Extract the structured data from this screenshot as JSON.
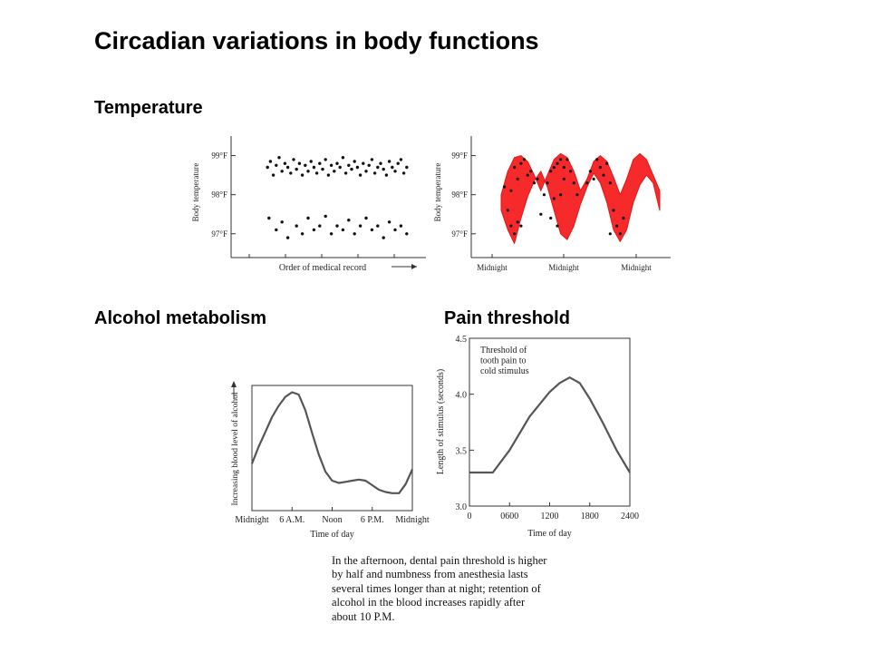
{
  "slide": {
    "title": "Circadian variations in body functions",
    "sections": {
      "temperature": "Temperature",
      "alcohol": "Alcohol metabolism",
      "pain": "Pain threshold"
    },
    "caption": "In the afternoon, dental pain threshold is higher by half and numbness from anesthesia lasts several times longer than at night; retention of alcohol in the blood increases rapidly after about 10 P.M."
  },
  "chart_data": [
    {
      "type": "scatter",
      "id": "temp-unordered",
      "xlabel": "Order of medical record",
      "ylabel": "Body temperature",
      "yticks": [
        "99°F",
        "98°F",
        "97°F"
      ],
      "ytick_values": [
        99,
        98,
        97
      ],
      "ylim": [
        96.6,
        99.5
      ],
      "xlim": [
        0,
        1
      ],
      "points": [
        [
          0.02,
          98.7
        ],
        [
          0.04,
          98.85
        ],
        [
          0.06,
          98.5
        ],
        [
          0.08,
          98.75
        ],
        [
          0.1,
          98.95
        ],
        [
          0.12,
          98.6
        ],
        [
          0.14,
          98.8
        ],
        [
          0.16,
          98.7
        ],
        [
          0.18,
          98.55
        ],
        [
          0.2,
          98.9
        ],
        [
          0.22,
          98.65
        ],
        [
          0.24,
          98.8
        ],
        [
          0.26,
          98.5
        ],
        [
          0.28,
          98.75
        ],
        [
          0.3,
          98.6
        ],
        [
          0.32,
          98.85
        ],
        [
          0.34,
          98.7
        ],
        [
          0.36,
          98.55
        ],
        [
          0.38,
          98.8
        ],
        [
          0.4,
          98.65
        ],
        [
          0.42,
          98.9
        ],
        [
          0.44,
          98.5
        ],
        [
          0.46,
          98.75
        ],
        [
          0.48,
          98.6
        ],
        [
          0.5,
          98.8
        ],
        [
          0.52,
          98.7
        ],
        [
          0.54,
          98.95
        ],
        [
          0.56,
          98.55
        ],
        [
          0.58,
          98.75
        ],
        [
          0.6,
          98.65
        ],
        [
          0.62,
          98.85
        ],
        [
          0.64,
          98.7
        ],
        [
          0.66,
          98.5
        ],
        [
          0.68,
          98.8
        ],
        [
          0.7,
          98.6
        ],
        [
          0.72,
          98.75
        ],
        [
          0.74,
          98.9
        ],
        [
          0.76,
          98.55
        ],
        [
          0.78,
          98.7
        ],
        [
          0.8,
          98.8
        ],
        [
          0.82,
          98.65
        ],
        [
          0.84,
          98.5
        ],
        [
          0.86,
          98.85
        ],
        [
          0.88,
          98.7
        ],
        [
          0.9,
          98.6
        ],
        [
          0.92,
          98.8
        ],
        [
          0.94,
          98.9
        ],
        [
          0.96,
          98.55
        ],
        [
          0.98,
          98.7
        ],
        [
          0.03,
          97.4
        ],
        [
          0.08,
          97.1
        ],
        [
          0.12,
          97.3
        ],
        [
          0.16,
          96.9
        ],
        [
          0.22,
          97.2
        ],
        [
          0.26,
          97.0
        ],
        [
          0.3,
          97.4
        ],
        [
          0.34,
          97.1
        ],
        [
          0.38,
          97.2
        ],
        [
          0.42,
          97.45
        ],
        [
          0.46,
          97.0
        ],
        [
          0.5,
          97.2
        ],
        [
          0.54,
          97.1
        ],
        [
          0.58,
          97.35
        ],
        [
          0.62,
          97.0
        ],
        [
          0.66,
          97.2
        ],
        [
          0.7,
          97.4
        ],
        [
          0.74,
          97.1
        ],
        [
          0.78,
          97.2
        ],
        [
          0.82,
          96.9
        ],
        [
          0.86,
          97.3
        ],
        [
          0.9,
          97.1
        ],
        [
          0.94,
          97.2
        ],
        [
          0.98,
          97.0
        ]
      ]
    },
    {
      "type": "area",
      "id": "temp-circadian",
      "ylabel": "Body temperature",
      "yticks": [
        "99°F",
        "98°F",
        "97°F"
      ],
      "ytick_values": [
        99,
        98,
        97
      ],
      "ylim": [
        96.6,
        99.5
      ],
      "xticks": [
        "Midnight",
        "Midnight",
        "Midnight"
      ],
      "xlim": [
        0,
        48
      ],
      "upper": [
        [
          0,
          98.0
        ],
        [
          2,
          98.6
        ],
        [
          4,
          98.95
        ],
        [
          6,
          99.0
        ],
        [
          8,
          98.85
        ],
        [
          10,
          98.5
        ],
        [
          12,
          98.1
        ],
        [
          14,
          98.5
        ],
        [
          16,
          98.9
        ],
        [
          18,
          99.05
        ],
        [
          20,
          98.95
        ],
        [
          22,
          98.6
        ],
        [
          24,
          98.1
        ],
        [
          26,
          98.4
        ],
        [
          28,
          98.85
        ],
        [
          30,
          99.0
        ],
        [
          32,
          98.85
        ],
        [
          34,
          98.45
        ],
        [
          36,
          98.0
        ],
        [
          38,
          98.4
        ],
        [
          40,
          98.9
        ],
        [
          42,
          99.05
        ],
        [
          44,
          98.9
        ],
        [
          46,
          98.5
        ],
        [
          48,
          98.1
        ]
      ],
      "lower": [
        [
          0,
          97.6
        ],
        [
          2,
          97.1
        ],
        [
          4,
          96.75
        ],
        [
          6,
          97.4
        ],
        [
          8,
          97.95
        ],
        [
          10,
          98.35
        ],
        [
          12,
          98.6
        ],
        [
          14,
          98.2
        ],
        [
          16,
          97.6
        ],
        [
          18,
          97.0
        ],
        [
          20,
          96.85
        ],
        [
          22,
          97.2
        ],
        [
          24,
          97.75
        ],
        [
          26,
          98.2
        ],
        [
          28,
          98.55
        ],
        [
          30,
          98.3
        ],
        [
          32,
          97.8
        ],
        [
          34,
          97.1
        ],
        [
          36,
          96.8
        ],
        [
          38,
          97.1
        ],
        [
          40,
          97.8
        ],
        [
          42,
          98.25
        ],
        [
          44,
          98.5
        ],
        [
          46,
          98.3
        ],
        [
          48,
          97.6
        ]
      ],
      "points": [
        [
          1,
          98.2
        ],
        [
          2,
          97.6
        ],
        [
          3,
          98.1
        ],
        [
          4,
          98.7
        ],
        [
          5,
          98.4
        ],
        [
          6,
          98.8
        ],
        [
          7,
          98.9
        ],
        [
          8,
          98.5
        ],
        [
          9,
          98.6
        ],
        [
          10,
          98.3
        ],
        [
          11,
          98.4
        ],
        [
          3,
          97.2
        ],
        [
          4,
          97.0
        ],
        [
          5,
          97.3
        ],
        [
          6,
          97.2
        ],
        [
          13,
          98.0
        ],
        [
          15,
          97.4
        ],
        [
          16,
          97.9
        ],
        [
          17,
          97.2
        ],
        [
          18,
          98.0
        ],
        [
          19,
          98.7
        ],
        [
          20,
          98.9
        ],
        [
          21,
          98.6
        ],
        [
          22,
          98.3
        ],
        [
          23,
          98.0
        ],
        [
          14,
          98.3
        ],
        [
          15,
          98.6
        ],
        [
          16,
          98.7
        ],
        [
          17,
          98.8
        ],
        [
          18,
          98.9
        ],
        [
          19,
          98.4
        ],
        [
          12,
          97.5
        ],
        [
          26,
          98.3
        ],
        [
          27,
          98.6
        ],
        [
          28,
          98.4
        ],
        [
          29,
          98.9
        ],
        [
          30,
          98.7
        ],
        [
          31,
          98.5
        ],
        [
          32,
          98.8
        ],
        [
          33,
          98.3
        ],
        [
          34,
          97.6
        ],
        [
          35,
          97.2
        ],
        [
          36,
          97.0
        ],
        [
          37,
          97.4
        ],
        [
          33,
          97.0
        ]
      ]
    },
    {
      "type": "line",
      "id": "alcohol",
      "ylabel": "Increasing blood level of alcohol",
      "xlabel": "Time of day",
      "xticks": [
        "Midnight",
        "6 A.M.",
        "Noon",
        "6 P.M.",
        "Midnight"
      ],
      "xtick_values": [
        0,
        6,
        12,
        18,
        24
      ],
      "xlim": [
        0,
        24
      ],
      "ylim": [
        0,
        1
      ],
      "x": [
        0,
        1,
        2,
        3,
        4,
        5,
        6,
        7,
        8,
        9,
        10,
        11,
        12,
        13,
        14,
        15,
        16,
        17,
        18,
        19,
        20,
        21,
        22,
        23,
        24
      ],
      "y": [
        0.35,
        0.5,
        0.63,
        0.76,
        0.86,
        0.94,
        0.98,
        0.96,
        0.82,
        0.62,
        0.43,
        0.28,
        0.2,
        0.18,
        0.19,
        0.2,
        0.21,
        0.2,
        0.16,
        0.12,
        0.1,
        0.09,
        0.09,
        0.17,
        0.3
      ]
    },
    {
      "type": "line",
      "id": "pain",
      "ylabel": "Length of stimulus (seconds)",
      "xlabel": "Time of day",
      "annotation": "Threshold of tooth pain to cold stimulus",
      "xticks": [
        "0",
        "0600",
        "1200",
        "1800",
        "2400"
      ],
      "xtick_values": [
        0,
        600,
        1200,
        1800,
        2400
      ],
      "yticks": [
        "4.5",
        "4.0",
        "3.5",
        "3.0"
      ],
      "ytick_values": [
        4.5,
        4.0,
        3.5,
        3.0
      ],
      "xlim": [
        0,
        2400
      ],
      "ylim": [
        3.0,
        4.5
      ],
      "x": [
        0,
        300,
        350,
        600,
        900,
        1200,
        1350,
        1500,
        1650,
        1800,
        2000,
        2200,
        2400
      ],
      "y": [
        3.3,
        3.3,
        3.3,
        3.5,
        3.8,
        4.02,
        4.1,
        4.15,
        4.1,
        3.96,
        3.74,
        3.5,
        3.3
      ]
    }
  ]
}
